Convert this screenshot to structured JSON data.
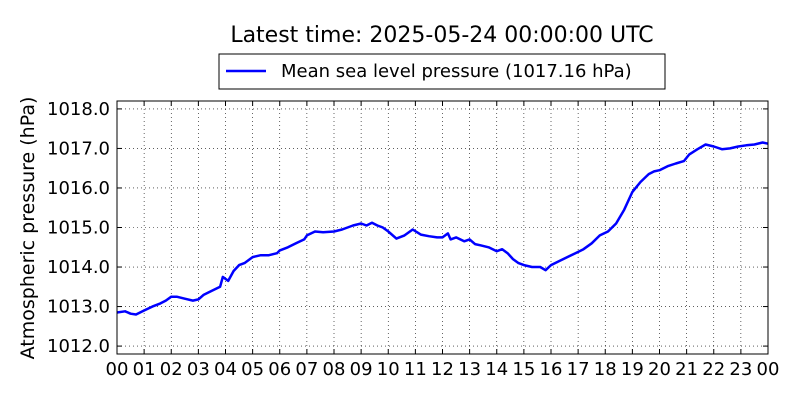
{
  "chart_data": {
    "type": "line",
    "title": "Latest time: 2025-05-24 00:00:00 UTC",
    "xlabel": "",
    "ylabel": "Atmospheric pressure (hPa)",
    "xlim": [
      0,
      24
    ],
    "ylim": [
      1011.8,
      1018.2
    ],
    "grid": true,
    "legend_position": "top",
    "x_ticks": [
      "00",
      "01",
      "02",
      "03",
      "04",
      "05",
      "06",
      "07",
      "08",
      "09",
      "10",
      "11",
      "12",
      "13",
      "14",
      "15",
      "16",
      "17",
      "18",
      "19",
      "20",
      "21",
      "22",
      "23",
      "00"
    ],
    "y_ticks": [
      "1012.0",
      "1013.0",
      "1014.0",
      "1015.0",
      "1016.0",
      "1017.0",
      "1018.0"
    ],
    "y_tick_values": [
      1012.0,
      1013.0,
      1014.0,
      1015.0,
      1016.0,
      1017.0,
      1018.0
    ],
    "series": [
      {
        "name": "Mean sea level pressure (1017.16 hPa)",
        "color": "#0000ff",
        "x": [
          0,
          0.3,
          0.5,
          0.7,
          1.0,
          1.3,
          1.6,
          1.8,
          2.0,
          2.2,
          2.5,
          2.8,
          3.0,
          3.2,
          3.5,
          3.8,
          3.9,
          4.1,
          4.3,
          4.5,
          4.7,
          5.0,
          5.3,
          5.6,
          5.9,
          6.0,
          6.3,
          6.6,
          6.9,
          7.0,
          7.3,
          7.6,
          8.0,
          8.3,
          8.7,
          9.0,
          9.2,
          9.4,
          9.6,
          9.8,
          10.0,
          10.3,
          10.6,
          10.9,
          11.2,
          11.5,
          11.8,
          12.0,
          12.2,
          12.3,
          12.5,
          12.8,
          13.0,
          13.2,
          13.4,
          13.7,
          14.0,
          14.2,
          14.4,
          14.6,
          14.8,
          15.0,
          15.3,
          15.6,
          15.8,
          16.0,
          16.3,
          16.6,
          16.9,
          17.2,
          17.5,
          17.8,
          18.1,
          18.4,
          18.7,
          19.0,
          19.3,
          19.6,
          19.8,
          20.0,
          20.3,
          20.6,
          20.9,
          21.1,
          21.4,
          21.7,
          22.0,
          22.3,
          22.6,
          22.9,
          23.2,
          23.5,
          23.8,
          24.0
        ],
        "y": [
          1012.85,
          1012.88,
          1012.82,
          1012.8,
          1012.9,
          1013.0,
          1013.08,
          1013.15,
          1013.25,
          1013.25,
          1013.2,
          1013.15,
          1013.18,
          1013.3,
          1013.4,
          1013.5,
          1013.75,
          1013.65,
          1013.9,
          1014.05,
          1014.1,
          1014.25,
          1014.3,
          1014.3,
          1014.35,
          1014.42,
          1014.5,
          1014.6,
          1014.7,
          1014.8,
          1014.9,
          1014.88,
          1014.9,
          1014.95,
          1015.05,
          1015.1,
          1015.05,
          1015.12,
          1015.05,
          1015.0,
          1014.9,
          1014.72,
          1014.8,
          1014.95,
          1014.82,
          1014.78,
          1014.75,
          1014.75,
          1014.85,
          1014.7,
          1014.75,
          1014.65,
          1014.7,
          1014.58,
          1014.55,
          1014.5,
          1014.4,
          1014.45,
          1014.35,
          1014.2,
          1014.1,
          1014.05,
          1014.0,
          1014.0,
          1013.92,
          1014.05,
          1014.15,
          1014.25,
          1014.35,
          1014.45,
          1014.6,
          1014.8,
          1014.9,
          1015.1,
          1015.45,
          1015.9,
          1016.15,
          1016.35,
          1016.42,
          1016.45,
          1016.55,
          1016.62,
          1016.68,
          1016.85,
          1016.98,
          1017.1,
          1017.05,
          1016.98,
          1017.0,
          1017.05,
          1017.08,
          1017.1,
          1017.15,
          1017.12
        ]
      }
    ]
  }
}
